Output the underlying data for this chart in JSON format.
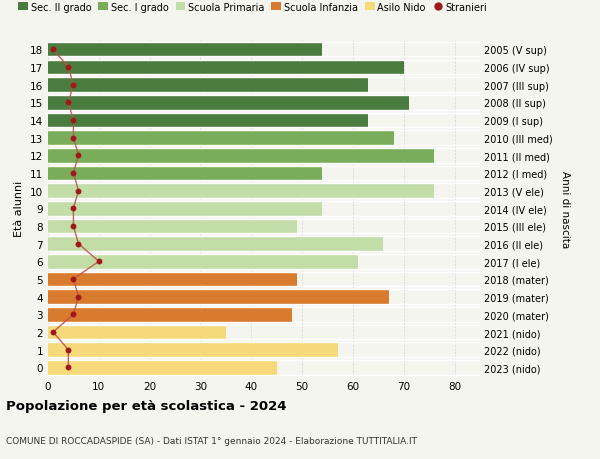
{
  "ages": [
    18,
    17,
    16,
    15,
    14,
    13,
    12,
    11,
    10,
    9,
    8,
    7,
    6,
    5,
    4,
    3,
    2,
    1,
    0
  ],
  "bar_values": [
    54,
    70,
    63,
    71,
    63,
    68,
    76,
    54,
    76,
    54,
    49,
    66,
    61,
    49,
    67,
    48,
    35,
    57,
    45
  ],
  "bar_colors": [
    "#4a7c3f",
    "#4a7c3f",
    "#4a7c3f",
    "#4a7c3f",
    "#4a7c3f",
    "#7aad5a",
    "#7aad5a",
    "#7aad5a",
    "#c2dda8",
    "#c2dda8",
    "#c2dda8",
    "#c2dda8",
    "#c2dda8",
    "#d97b2e",
    "#d97b2e",
    "#d97b2e",
    "#f5d97a",
    "#f5d97a",
    "#f5d97a"
  ],
  "stranieri_values": [
    1,
    4,
    5,
    4,
    5,
    5,
    6,
    5,
    6,
    5,
    5,
    6,
    10,
    5,
    6,
    5,
    1,
    4,
    4
  ],
  "right_labels": [
    "2005 (V sup)",
    "2006 (IV sup)",
    "2007 (III sup)",
    "2008 (II sup)",
    "2009 (I sup)",
    "2010 (III med)",
    "2011 (II med)",
    "2012 (I med)",
    "2013 (V ele)",
    "2014 (IV ele)",
    "2015 (III ele)",
    "2016 (II ele)",
    "2017 (I ele)",
    "2018 (mater)",
    "2019 (mater)",
    "2020 (mater)",
    "2021 (nido)",
    "2022 (nido)",
    "2023 (nido)"
  ],
  "legend_labels": [
    "Sec. II grado",
    "Sec. I grado",
    "Scuola Primaria",
    "Scuola Infanzia",
    "Asilo Nido",
    "Stranieri"
  ],
  "legend_colors": [
    "#4a7c3f",
    "#7aad5a",
    "#c2dda8",
    "#d97b2e",
    "#f5d97a",
    "#9e1a1a"
  ],
  "ylabel": "Età alunni",
  "right_ylabel": "Anni di nascita",
  "title": "Popolazione per età scolastica - 2024",
  "subtitle": "COMUNE DI ROCCADASPIDE (SA) - Dati ISTAT 1° gennaio 2024 - Elaborazione TUTTITALIA.IT",
  "xlim": [
    0,
    85
  ],
  "xticks": [
    0,
    10,
    20,
    30,
    40,
    50,
    60,
    70,
    80
  ],
  "background_color": "#f5f5ef",
  "stranieri_dot_color": "#9e1a1a",
  "stranieri_line_color": "#c0504d"
}
